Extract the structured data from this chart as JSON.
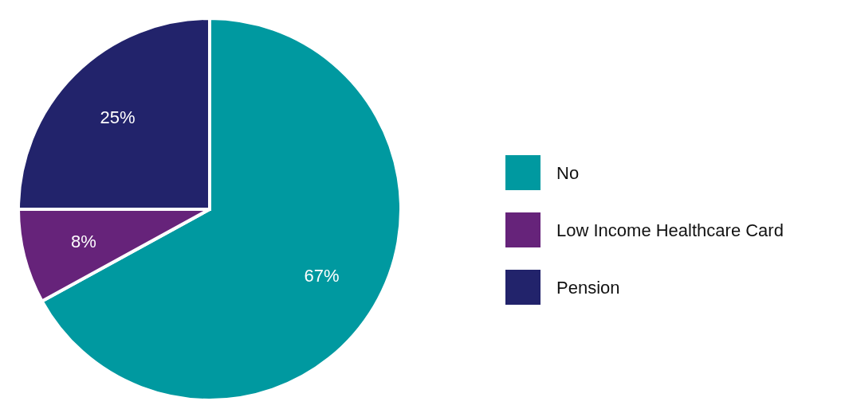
{
  "chart_data": {
    "type": "pie",
    "categories": [
      "No",
      "Low Income Healthcare Card",
      "Pension"
    ],
    "values": [
      67,
      8,
      25
    ],
    "colors": [
      "#0099a0",
      "#66237a",
      "#22236b"
    ],
    "value_labels": [
      "67%",
      "8%",
      "25%"
    ],
    "legend": "right"
  }
}
